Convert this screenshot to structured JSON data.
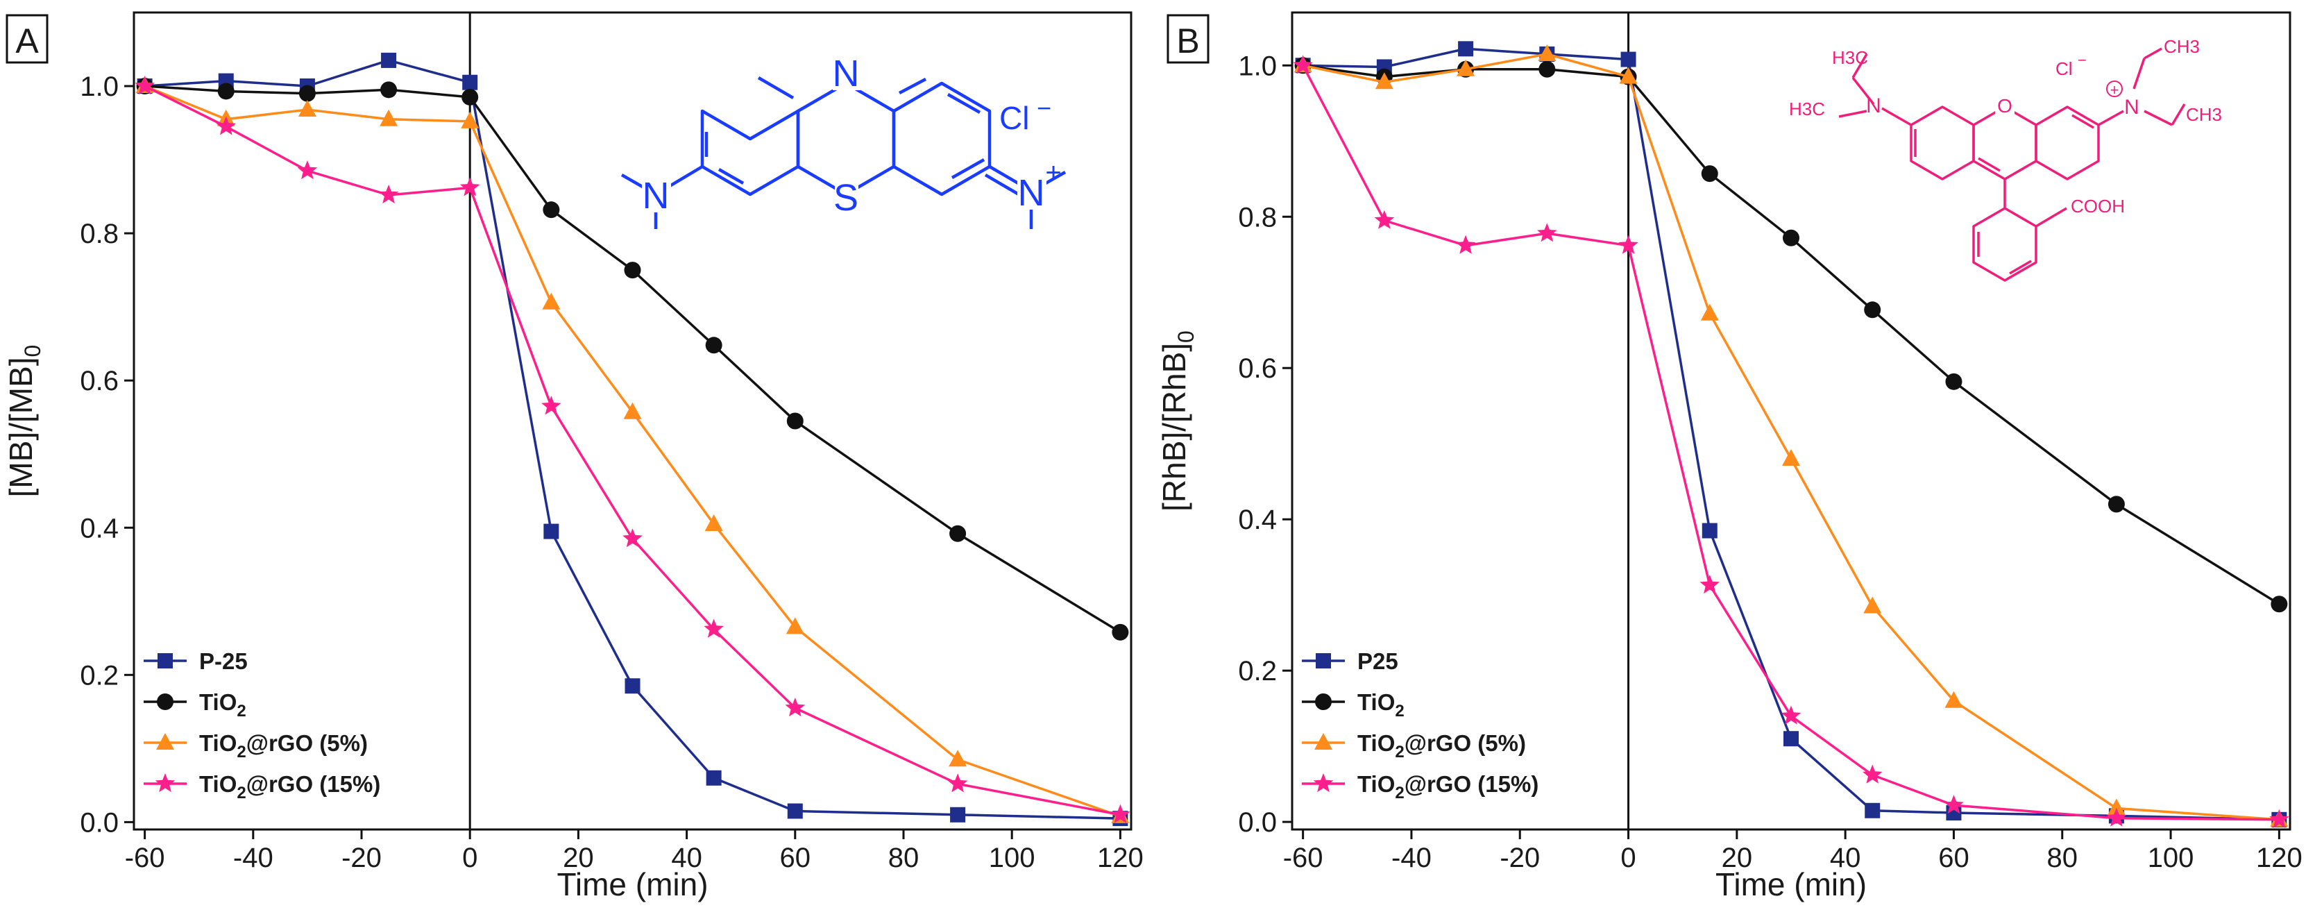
{
  "colors": {
    "p25": "#1f2e8c",
    "tio2": "#111111",
    "rgo5": "#ff8c1a",
    "rgo15": "#ff1f8c",
    "mb_structure": "#1a3cff",
    "rhb_structure": "#ee1e7a"
  },
  "chart_data": [
    {
      "panel": "A",
      "type": "line",
      "xlabel": "Time (min)",
      "ylabel_main": "[MB]/[MB]",
      "ylabel_sub": "0",
      "xlim": [
        -62,
        122
      ],
      "ylim": [
        -0.01,
        1.1
      ],
      "xticks": [
        -60,
        -40,
        -20,
        0,
        20,
        40,
        60,
        80,
        100,
        120
      ],
      "yticks": [
        0.0,
        0.2,
        0.4,
        0.6,
        0.8,
        1.0
      ],
      "ytick_labels": [
        "0.0",
        "0.2",
        "0.4",
        "0.6",
        "0.8",
        "1.0"
      ],
      "vline_x": 0,
      "legend_position": "bottom-left",
      "series": [
        {
          "name": "P-25",
          "marker": "square",
          "color": "#1f2e8c",
          "x": [
            -60,
            -45,
            -30,
            -15,
            0,
            15,
            30,
            45,
            60,
            90,
            120
          ],
          "y": [
            1.0,
            1.007,
            1.0,
            1.035,
            1.005,
            0.395,
            0.185,
            0.06,
            0.015,
            0.01,
            0.005
          ]
        },
        {
          "name": "TiO",
          "name_sub": "2",
          "marker": "circle",
          "color": "#111111",
          "x": [
            -60,
            -45,
            -30,
            -15,
            0,
            15,
            30,
            45,
            60,
            90,
            120
          ],
          "y": [
            1.0,
            0.993,
            0.99,
            0.995,
            0.985,
            0.832,
            0.75,
            0.648,
            0.545,
            0.392,
            0.258
          ]
        },
        {
          "name": "TiO",
          "name_sub": "2",
          "name_suffix": "@rGO (5%)",
          "marker": "triangle",
          "color": "#ff8c1a",
          "x": [
            -60,
            -45,
            -30,
            -15,
            0,
            15,
            30,
            45,
            60,
            90,
            120
          ],
          "y": [
            1.0,
            0.955,
            0.968,
            0.955,
            0.952,
            0.706,
            0.557,
            0.405,
            0.265,
            0.085,
            0.008
          ]
        },
        {
          "name": "TiO",
          "name_sub": "2",
          "name_suffix": "@rGO (15%)",
          "marker": "star",
          "color": "#ff1f8c",
          "x": [
            -60,
            -45,
            -30,
            -15,
            0,
            15,
            30,
            45,
            60,
            90,
            120
          ],
          "y": [
            1.0,
            0.945,
            0.885,
            0.852,
            0.862,
            0.565,
            0.385,
            0.262,
            0.155,
            0.052,
            0.01
          ]
        }
      ],
      "structure_labels": {
        "n_top": "N",
        "s_bottom": "S",
        "n_left": "N",
        "n_right": "N",
        "plus": "+",
        "counterion": "Cl",
        "charge": "−"
      }
    },
    {
      "panel": "B",
      "type": "line",
      "xlabel": "Time (min)",
      "ylabel_main": "[RhB]/[RhB]",
      "ylabel_sub": "0",
      "xlim": [
        -62,
        122
      ],
      "ylim": [
        -0.01,
        1.07
      ],
      "xticks": [
        -60,
        -40,
        -20,
        0,
        20,
        40,
        60,
        80,
        100,
        120
      ],
      "yticks": [
        0.0,
        0.2,
        0.4,
        0.6,
        0.8,
        1.0
      ],
      "ytick_labels": [
        "0.0",
        "0.2",
        "0.4",
        "0.6",
        "0.8",
        "1.0"
      ],
      "vline_x": 0,
      "legend_position": "bottom-left",
      "series": [
        {
          "name": "P25",
          "marker": "square",
          "color": "#1f2e8c",
          "x": [
            -60,
            -45,
            -30,
            -15,
            0,
            15,
            30,
            45,
            60,
            90,
            120
          ],
          "y": [
            1.0,
            0.998,
            1.022,
            1.015,
            1.008,
            0.385,
            0.11,
            0.015,
            0.012,
            0.008,
            0.003
          ]
        },
        {
          "name": "TiO",
          "name_sub": "2",
          "marker": "circle",
          "color": "#111111",
          "x": [
            -60,
            -45,
            -30,
            -15,
            0,
            15,
            30,
            45,
            60,
            90,
            120
          ],
          "y": [
            1.0,
            0.985,
            0.995,
            0.995,
            0.985,
            0.857,
            0.772,
            0.677,
            0.582,
            0.42,
            0.288
          ]
        },
        {
          "name": "TiO",
          "name_sub": "2",
          "name_suffix": "@rGO (5%)",
          "marker": "triangle",
          "color": "#ff8c1a",
          "x": [
            -60,
            -45,
            -30,
            -15,
            0,
            15,
            30,
            45,
            60,
            90,
            120
          ],
          "y": [
            1.0,
            0.978,
            0.995,
            1.015,
            0.985,
            0.672,
            0.48,
            0.285,
            0.16,
            0.018,
            0.003
          ]
        },
        {
          "name": "TiO",
          "name_sub": "2",
          "name_suffix": "@rGO (15%)",
          "marker": "star",
          "color": "#ff1f8c",
          "x": [
            -60,
            -45,
            -30,
            -15,
            0,
            15,
            30,
            45,
            60,
            90,
            120
          ],
          "y": [
            1.0,
            0.795,
            0.762,
            0.778,
            0.762,
            0.313,
            0.14,
            0.062,
            0.022,
            0.005,
            0.003
          ]
        }
      ],
      "structure_labels": {
        "h3c_top": "H3C",
        "h3c_left": "H3C",
        "ch3_top": "CH3",
        "ch3_right": "CH3",
        "n_left": "N",
        "o_ring": "O",
        "n_right": "N",
        "plus": "+",
        "cl": "Cl",
        "cl_charge": "−",
        "cooh": "COOH"
      }
    }
  ]
}
